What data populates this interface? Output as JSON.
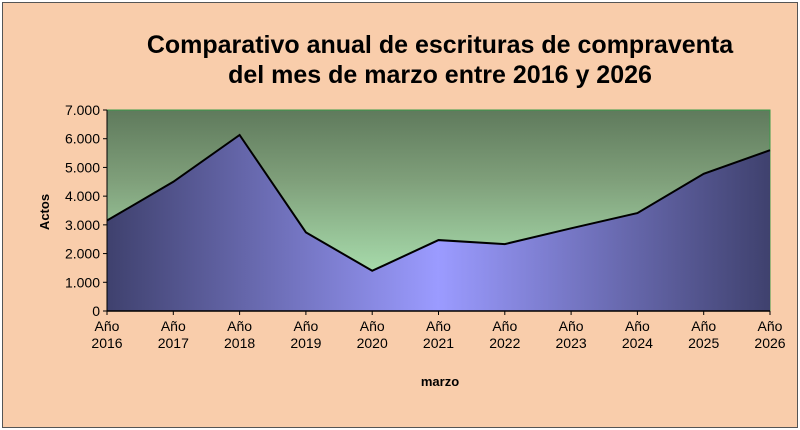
{
  "chart_data": {
    "type": "area",
    "title_line1": "Comparativo anual de escrituras de compraventa",
    "title_line2": "del mes de marzo entre 2016 y 2026",
    "xlabel": "marzo",
    "ylabel": "Actos",
    "categories": [
      [
        "Año",
        "2016"
      ],
      [
        "Año",
        "2017"
      ],
      [
        "Año",
        "2018"
      ],
      [
        "Año",
        "2019"
      ],
      [
        "Año",
        "2020"
      ],
      [
        "Año",
        "2021"
      ],
      [
        "Año",
        "2022"
      ],
      [
        "Año",
        "2023"
      ],
      [
        "Año",
        "2024"
      ],
      [
        "Año",
        "2025"
      ],
      [
        "Año",
        "2026"
      ]
    ],
    "values": [
      3150,
      4500,
      6130,
      2740,
      1400,
      2470,
      2330,
      2880,
      3410,
      4780,
      5600
    ],
    "ylim": [
      0,
      7000
    ],
    "yticks": [
      "0",
      "1.000",
      "2.000",
      "3.000",
      "4.000",
      "5.000",
      "6.000",
      "7.000"
    ],
    "grid": false,
    "legend": "none",
    "colors": {
      "background": "#f9cdab",
      "plot_top": "#5f7a5c",
      "plot_bottom": "#b8f0bc",
      "area_dark": "#3f416e",
      "area_light": "#9b9bff",
      "line": "#000000"
    }
  }
}
